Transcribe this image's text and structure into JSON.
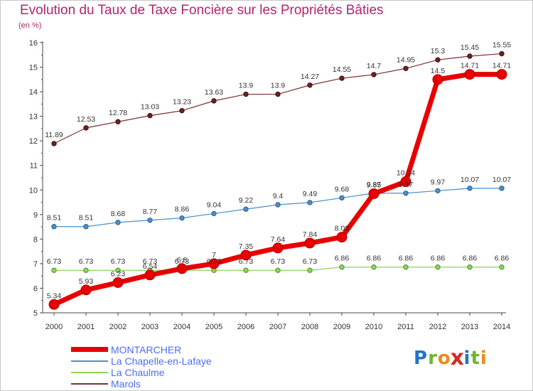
{
  "header": {
    "title": "Evolution du Taux de Taxe Foncière sur les Propriétés Bâties",
    "unit": "(en %)"
  },
  "brand": {
    "name": "Proxiti",
    "letters": [
      "P",
      "r",
      "o",
      "x",
      "i",
      "t",
      "i"
    ],
    "letter_colors": [
      "#1f74c9",
      "#6fb52c",
      "#f08a16",
      "#d62a28",
      "#1f74c9",
      "#6fb52c",
      "#f08a16"
    ]
  },
  "chart_data": {
    "type": "line",
    "title": "Evolution du Taux de Taxe Foncière sur les Propriétés Bâties",
    "ylabel": "(en %)",
    "xlabel": "",
    "x": [
      2000,
      2001,
      2002,
      2003,
      2004,
      2005,
      2006,
      2007,
      2008,
      2009,
      2010,
      2011,
      2012,
      2013,
      2014
    ],
    "ylim": [
      5,
      16
    ],
    "yticks": [
      5,
      6,
      7,
      8,
      9,
      10,
      11,
      12,
      13,
      14,
      15,
      16
    ],
    "grid": false,
    "legend_position": "bottom-left",
    "series": [
      {
        "name": "MONTARCHER",
        "color": "#e80000",
        "values": [
          5.34,
          5.93,
          6.23,
          6.54,
          6.8,
          7,
          7.35,
          7.64,
          7.84,
          8.08,
          9.85,
          10.34,
          14.5,
          14.71,
          14.71
        ],
        "labels": [
          "5.34",
          "5.93",
          "6.23",
          "6.54",
          "6.8",
          "7",
          "7.35",
          "7.64",
          "7.84",
          "8.08",
          "9.85",
          "10.34",
          "14.5",
          "14.71",
          "14.71"
        ]
      },
      {
        "name": "La Chapelle-en-Lafaye",
        "color": "#4a90c8",
        "values": [
          8.51,
          8.51,
          8.68,
          8.77,
          8.86,
          9.04,
          9.22,
          9.4,
          9.49,
          9.68,
          9.87,
          9.87,
          9.97,
          10.07,
          10.07
        ],
        "labels": [
          "8.51",
          "8.51",
          "8.68",
          "8.77",
          "8.86",
          "9.04",
          "9.22",
          "9.4",
          "9.49",
          "9.68",
          "9.87",
          "9.87",
          "9.97",
          "10.07",
          "10.07"
        ]
      },
      {
        "name": "La Chaulme",
        "color": "#8fd45a",
        "values": [
          6.73,
          6.73,
          6.73,
          6.73,
          6.73,
          6.73,
          6.73,
          6.73,
          6.73,
          6.86,
          6.86,
          6.86,
          6.86,
          6.86,
          6.86
        ],
        "labels": [
          "6.73",
          "6.73",
          "6.73",
          "6.73",
          "6.73",
          "6.73",
          "6.73",
          "6.73",
          "6.73",
          "6.86",
          "6.86",
          "6.86",
          "6.86",
          "6.86",
          "6.86"
        ]
      },
      {
        "name": "Marols",
        "color": "#7a3030",
        "values": [
          11.89,
          12.53,
          12.78,
          13.03,
          13.23,
          13.63,
          13.9,
          13.9,
          14.27,
          14.55,
          14.7,
          14.95,
          15.3,
          15.45,
          15.55
        ],
        "labels": [
          "11.89",
          "12.53",
          "12.78",
          "13.03",
          "13.23",
          "13.63",
          "13.9",
          "13.9",
          "14.27",
          "14.55",
          "14.7",
          "14.95",
          "15.3",
          "15.45",
          "15.55"
        ]
      }
    ]
  }
}
